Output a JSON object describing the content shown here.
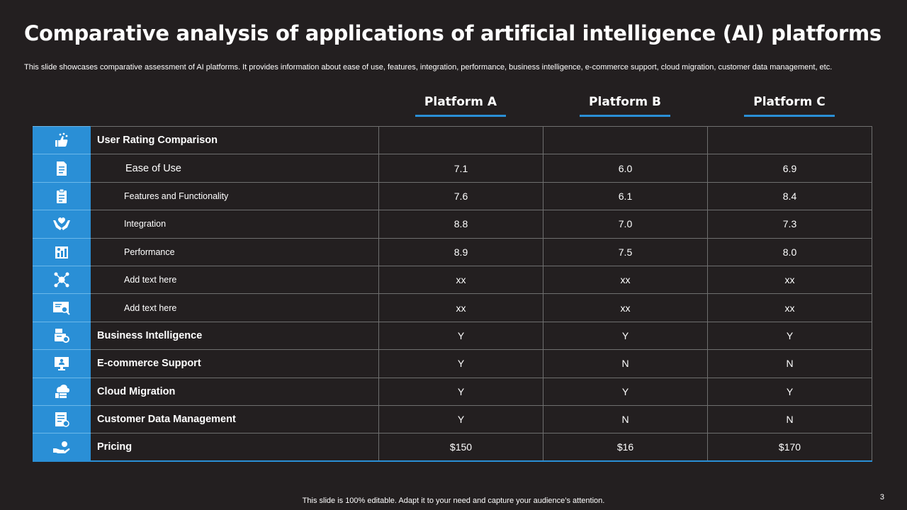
{
  "slide": {
    "title": "Comparative analysis of applications of artificial intelligence (AI) platforms",
    "subtitle": "This slide showcases comparative assessment of AI platforms. It provides information about ease of use, features, integration, performance, business intelligence, e-commerce support, cloud migration, customer data management, etc.",
    "footer": "This slide is 100% editable. Adapt it to your need and capture your audience’s attention.",
    "page_number": "3",
    "accent_color": "#2a8fd6",
    "background_color": "#231f20"
  },
  "platforms": [
    "Platform A",
    "Platform B",
    "Platform C"
  ],
  "rows": [
    {
      "icon": "thumbs-up-stars-icon",
      "label": "User Rating Comparison",
      "a": "",
      "b": "",
      "c": ""
    },
    {
      "icon": "document-icon",
      "label": "Ease of Use",
      "a": "7.1",
      "b": "6.0",
      "c": "6.9"
    },
    {
      "icon": "clipboard-icon",
      "label": "Features and Functionality",
      "a": "7.6",
      "b": "6.1",
      "c": "8.4"
    },
    {
      "icon": "hands-heart-icon",
      "label": "Integration",
      "a": "8.8",
      "b": "7.0",
      "c": "7.3"
    },
    {
      "icon": "performance-report-icon",
      "label": "Performance",
      "a": "8.9",
      "b": "7.5",
      "c": "8.0"
    },
    {
      "icon": "network-nodes-icon",
      "label": "Add text here",
      "a": "xx",
      "b": "xx",
      "c": "xx"
    },
    {
      "icon": "search-board-icon",
      "label": "Add text here",
      "a": "xx",
      "b": "xx",
      "c": "xx"
    },
    {
      "icon": "business-intelligence-icon",
      "label": "Business Intelligence",
      "a": "Y",
      "b": "Y",
      "c": "Y"
    },
    {
      "icon": "monitor-user-icon",
      "label": "E-commerce Support",
      "a": "Y",
      "b": "N",
      "c": "N"
    },
    {
      "icon": "cloud-server-icon",
      "label": "Cloud Migration",
      "a": "Y",
      "b": "Y",
      "c": "Y"
    },
    {
      "icon": "data-management-icon",
      "label": "Customer Data Management",
      "a": "Y",
      "b": "N",
      "c": "N"
    },
    {
      "icon": "hand-coin-icon",
      "label": "Pricing",
      "a": "$150",
      "b": "$16",
      "c": "$170"
    }
  ]
}
